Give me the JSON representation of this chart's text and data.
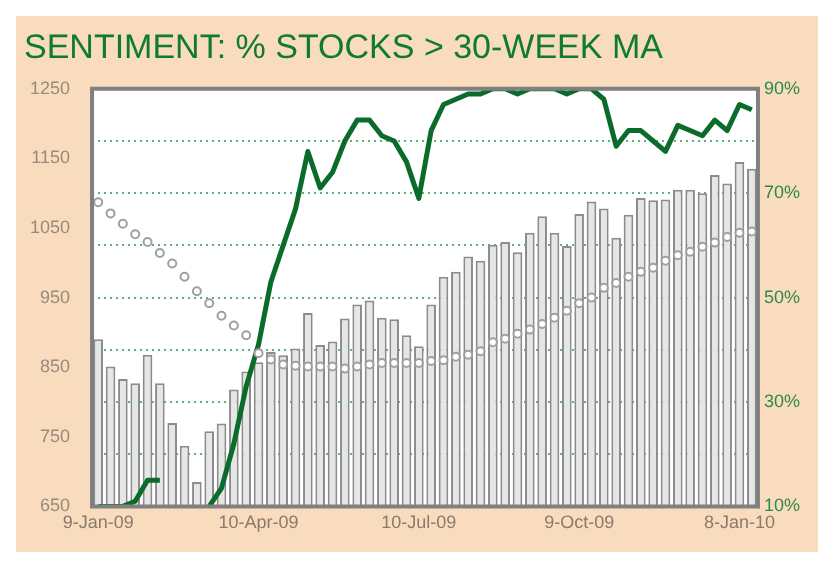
{
  "chart_data": {
    "type": "bar",
    "title": "SENTIMENT: % STOCKS > 30-WEEK MA",
    "categories": [
      "9-Jan-09",
      null,
      null,
      null,
      null,
      null,
      null,
      null,
      null,
      null,
      null,
      null,
      null,
      "10-Apr-09",
      null,
      null,
      null,
      null,
      null,
      null,
      null,
      null,
      null,
      null,
      null,
      null,
      "10-Jul-09",
      null,
      null,
      null,
      null,
      null,
      null,
      null,
      null,
      null,
      null,
      null,
      null,
      "9-Oct-09",
      null,
      null,
      null,
      null,
      null,
      null,
      null,
      null,
      null,
      null,
      null,
      null,
      "8-Jan-10",
      null
    ],
    "series": [
      {
        "color": "#e6e6e6",
        "values": [
          890,
          851,
          833,
          827,
          868,
          827,
          770,
          737,
          685,
          758,
          769,
          818,
          844,
          857,
          872,
          867,
          877,
          928,
          882,
          887,
          920,
          940,
          946,
          921,
          919,
          896,
          880,
          940,
          980,
          987,
          1009,
          1003,
          1026,
          1030,
          1015,
          1043,
          1067,
          1043,
          1024,
          1070,
          1088,
          1078,
          1036,
          1069,
          1093,
          1090,
          1091,
          1105,
          1105,
          1100,
          1126,
          1114,
          1145,
          1135
        ]
      },
      {
        "type": "scatter",
        "color": "#a0a0a0",
        "marker": "circle",
        "values": [
          1087,
          1071,
          1056,
          1041,
          1030,
          1014,
          999,
          980,
          959,
          942,
          924,
          910,
          896,
          870,
          861,
          854,
          852,
          851,
          851,
          851,
          848,
          851,
          854,
          856,
          856,
          856,
          856,
          859,
          860,
          865,
          868,
          873,
          886,
          891,
          898,
          904,
          912,
          921,
          931,
          942,
          950,
          964,
          971,
          980,
          987,
          993,
          1003,
          1011,
          1016,
          1023,
          1029,
          1037,
          1043,
          1045
        ]
      },
      {
        "type": "line",
        "axis": "y2",
        "color": "#0b6b2a",
        "line_style": "solid",
        "marker": "none",
        "values": [
          10,
          10,
          10,
          11,
          15,
          15,
          null,
          null,
          null,
          10,
          13.5,
          22,
          33,
          41,
          53,
          60,
          67,
          78,
          71,
          74,
          80,
          84,
          84,
          81,
          80,
          76,
          69,
          82,
          87,
          88,
          89,
          89,
          90,
          90,
          89,
          90,
          90,
          90,
          89,
          90,
          90,
          88,
          79,
          82,
          82,
          80,
          78,
          83,
          82,
          81,
          84,
          82,
          87,
          86
        ]
      }
    ],
    "ylim": [
      650,
      1250
    ],
    "yticks": [
      650,
      750,
      850,
      950,
      1050,
      1150,
      1250
    ],
    "y2lim": [
      10,
      90
    ],
    "y2ticks": [
      {
        "value": 10,
        "label": "10%"
      },
      {
        "value": 20,
        "label": null
      },
      {
        "value": 30,
        "label": "30%"
      },
      {
        "value": 40,
        "label": null
      },
      {
        "value": 50,
        "label": "50%"
      },
      {
        "value": 60,
        "label": null
      },
      {
        "value": 70,
        "label": "70%"
      },
      {
        "value": 80,
        "label": null
      },
      {
        "value": 90,
        "label": "90%"
      }
    ],
    "grid": "y",
    "legend": false
  }
}
